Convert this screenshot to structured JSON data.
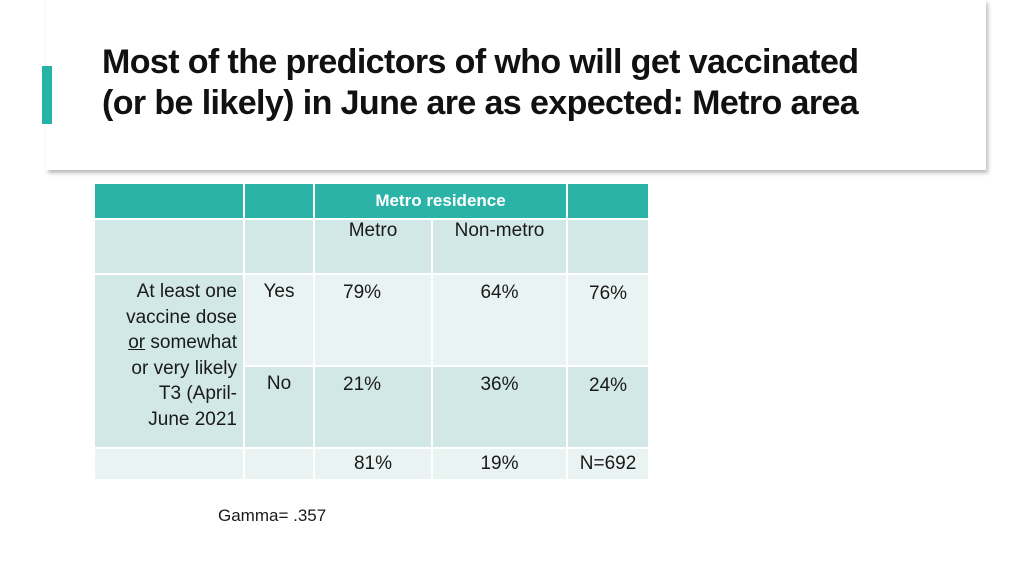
{
  "slide": {
    "title": "Most of the predictors of who will get vaccinated (or be likely) in June are as expected:  Metro area",
    "accent_color": "#26b3a5"
  },
  "table": {
    "header_group": "Metro residence",
    "header_color": "#2ab3a6",
    "columns": [
      "Metro",
      "Non-metro"
    ],
    "row_label_lines": [
      "At least one",
      "vaccine dose",
      "or",
      "somewhat",
      "or very likely",
      "T3 (April-",
      "June 2021"
    ],
    "rows": [
      {
        "label": "Yes",
        "metro": "79%",
        "nonmetro": "64%",
        "total": "76%"
      },
      {
        "label": "No",
        "metro": "21%",
        "nonmetro": "36%",
        "total": "24%"
      }
    ],
    "totals": {
      "metro": "81%",
      "nonmetro": "19%",
      "n": "N=692"
    }
  },
  "footnote": "Gamma= .357"
}
